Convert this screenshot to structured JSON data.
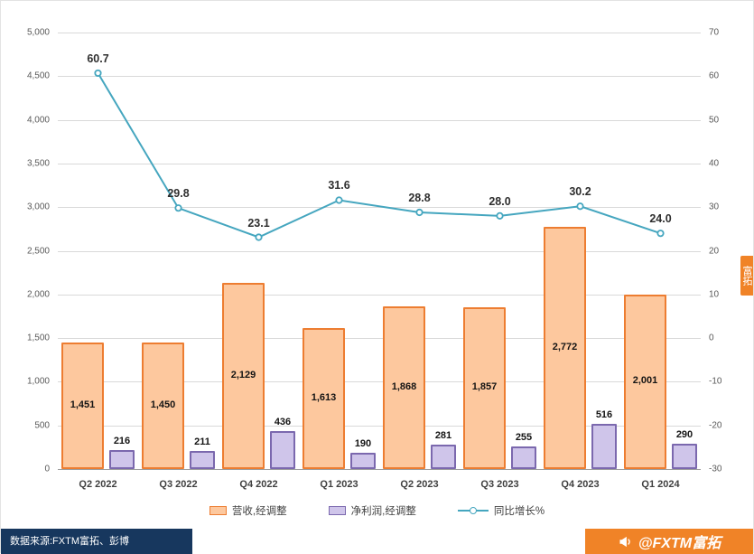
{
  "chart_data": {
    "type": "combo",
    "categories": [
      "Q2 2022",
      "Q3 2022",
      "Q4 2022",
      "Q1 2023",
      "Q2 2023",
      "Q3 2023",
      "Q4 2023",
      "Q1 2024"
    ],
    "series": [
      {
        "name": "营收,经调整",
        "type": "bar",
        "axis": "left",
        "values": [
          1451,
          1450,
          2129,
          1613,
          1868,
          1857,
          2772,
          2001
        ],
        "labels": [
          "1,451",
          "1,450",
          "2,129",
          "1,613",
          "1,868",
          "1,857",
          "2,772",
          "2,001"
        ],
        "fill": "#FDC89E",
        "border": "#ED7D31",
        "label_position": "center"
      },
      {
        "name": "净利润,经调整",
        "type": "bar",
        "axis": "left",
        "values": [
          216,
          211,
          436,
          190,
          281,
          255,
          516,
          290
        ],
        "labels": [
          "216",
          "211",
          "436",
          "190",
          "281",
          "255",
          "516",
          "290"
        ],
        "fill": "#CFC5EA",
        "border": "#7B68AE",
        "label_position": "above"
      },
      {
        "name": "同比增长%",
        "type": "line",
        "axis": "right",
        "values": [
          60.7,
          29.8,
          23.1,
          31.6,
          28.8,
          28.0,
          30.2,
          24.0
        ],
        "labels": [
          "60.7",
          "29.8",
          "23.1",
          "31.6",
          "28.8",
          "28.0",
          "30.2",
          "24.0"
        ],
        "color": "#45A6BF"
      }
    ],
    "left_axis": {
      "min": 0,
      "max": 5000,
      "step": 500
    },
    "right_axis": {
      "min": -30,
      "max": 70,
      "step": 10
    },
    "grid": true,
    "legend_position": "bottom"
  },
  "footer": {
    "source": "数据来源:FXTM富拓、彭博",
    "brand": "@FXTM富拓",
    "side_watermark": "富拓"
  },
  "colors": {
    "grid": "#d9d9d9",
    "navy": "#17375E",
    "brand_orange": "#F08327"
  }
}
